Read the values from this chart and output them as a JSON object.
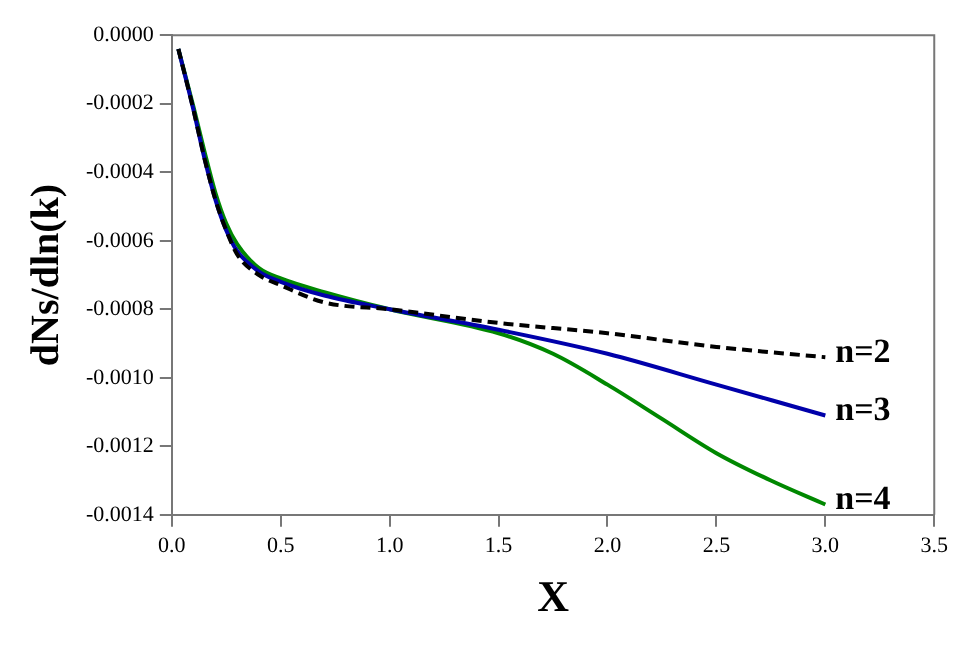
{
  "chart_data": {
    "type": "line",
    "xlabel": "X",
    "ylabel": "dNs/dln(k)",
    "legend": false,
    "grid": false,
    "marker": "none",
    "xlim": [
      0,
      3.5
    ],
    "ylim": [
      -0.0014,
      0
    ],
    "xticks": [
      {
        "value": 0,
        "label": "0.0"
      },
      {
        "value": 0.5,
        "label": "0.5"
      },
      {
        "value": 1,
        "label": "1.0"
      },
      {
        "value": 1.5,
        "label": "1.5"
      },
      {
        "value": 2,
        "label": "2.0"
      },
      {
        "value": 2.5,
        "label": "2.5"
      },
      {
        "value": 3,
        "label": "3.0"
      },
      {
        "value": 3.5,
        "label": "3.5"
      }
    ],
    "yticks": [
      {
        "value": -0.0014,
        "label": "-0.0014"
      },
      {
        "value": -0.0012,
        "label": "-0.0012"
      },
      {
        "value": -0.001,
        "label": "-0.0010"
      },
      {
        "value": -0.0008,
        "label": "-0.0008"
      },
      {
        "value": -0.0006,
        "label": "-0.0006"
      },
      {
        "value": -0.0004,
        "label": "-0.0004"
      },
      {
        "value": -0.0002,
        "label": "-0.0002"
      },
      {
        "value": 0,
        "label": "0.0000"
      }
    ],
    "series": [
      {
        "name": "n=2",
        "color": "#000000",
        "line_style": "dashed",
        "x": [
          0.03,
          0.1,
          0.15,
          0.2,
          0.25,
          0.3,
          0.4,
          0.5,
          0.7,
          1.0,
          1.5,
          2.0,
          2.5,
          3.0
        ],
        "values": [
          -4e-05,
          -0.00022,
          -0.00036,
          -0.00048,
          -0.00057,
          -0.00064,
          -0.0007,
          -0.00073,
          -0.00078,
          -0.0008,
          -0.00084,
          -0.00087,
          -0.00091,
          -0.00094
        ]
      },
      {
        "name": "n=3",
        "color": "#0000aa",
        "line_style": "solid",
        "x": [
          0.03,
          0.1,
          0.15,
          0.2,
          0.25,
          0.3,
          0.4,
          0.5,
          0.7,
          1.0,
          1.5,
          2.0,
          2.5,
          3.0
        ],
        "values": [
          -4e-05,
          -0.00022,
          -0.00036,
          -0.00048,
          -0.00057,
          -0.00063,
          -0.00069,
          -0.00072,
          -0.00076,
          -0.0008,
          -0.00086,
          -0.00093,
          -0.00102,
          -0.00111
        ]
      },
      {
        "name": "n=4",
        "color": "#008800",
        "line_style": "solid",
        "x": [
          0.03,
          0.1,
          0.15,
          0.2,
          0.25,
          0.3,
          0.4,
          0.5,
          0.7,
          1.0,
          1.5,
          1.75,
          2.0,
          2.25,
          2.5,
          2.75,
          3.0
        ],
        "values": [
          -4e-05,
          -0.00021,
          -0.00034,
          -0.00046,
          -0.00055,
          -0.00061,
          -0.00068,
          -0.00071,
          -0.00075,
          -0.0008,
          -0.00087,
          -0.00093,
          -0.00102,
          -0.00112,
          -0.00122,
          -0.0013,
          -0.00137
        ]
      }
    ]
  }
}
